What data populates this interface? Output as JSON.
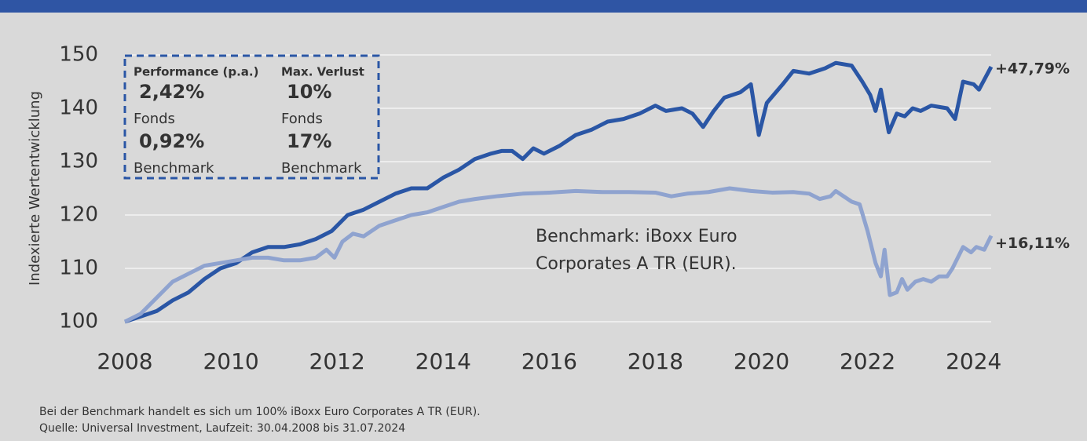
{
  "chart_data": {
    "type": "line",
    "y_label": "Indexierte Wertentwicklung",
    "xlim": [
      2008,
      2024.33
    ],
    "xticks": [
      2008,
      2010,
      2012,
      2014,
      2016,
      2018,
      2020,
      2022,
      2024
    ],
    "ylim": [
      100,
      150
    ],
    "yticks": [
      100,
      110,
      120,
      130,
      140,
      150
    ],
    "grid": true,
    "series": [
      {
        "name": "Fonds",
        "color": "#2a56a5",
        "end_label": "+47,79%",
        "x": [
          2008.0,
          2008.3,
          2008.6,
          2008.9,
          2009.2,
          2009.5,
          2009.8,
          2010.1,
          2010.4,
          2010.7,
          2011.0,
          2011.3,
          2011.6,
          2011.9,
          2012.2,
          2012.5,
          2012.8,
          2013.1,
          2013.4,
          2013.7,
          2014.0,
          2014.3,
          2014.6,
          2014.9,
          2015.1,
          2015.3,
          2015.5,
          2015.7,
          2015.9,
          2016.2,
          2016.5,
          2016.8,
          2017.1,
          2017.4,
          2017.7,
          2018.0,
          2018.2,
          2018.5,
          2018.7,
          2018.9,
          2019.1,
          2019.3,
          2019.6,
          2019.8,
          2019.95,
          2020.1,
          2020.4,
          2020.6,
          2020.9,
          2021.2,
          2021.4,
          2021.7,
          2021.9,
          2022.05,
          2022.15,
          2022.25,
          2022.4,
          2022.55,
          2022.7,
          2022.85,
          2023.0,
          2023.2,
          2023.5,
          2023.65,
          2023.8,
          2024.0,
          2024.1,
          2024.33
        ],
        "values": [
          100,
          101,
          102,
          104,
          105.5,
          108,
          110,
          111,
          113,
          114,
          114,
          114.5,
          115.5,
          117,
          120,
          121,
          122.5,
          124,
          125,
          125,
          127,
          128.5,
          130.5,
          131.5,
          132,
          132,
          130.5,
          132.5,
          131.5,
          133,
          135,
          136,
          137.5,
          138,
          139,
          140.5,
          139.5,
          140,
          139,
          136.5,
          139.5,
          142,
          143,
          144.5,
          135,
          141,
          144.5,
          147,
          146.5,
          147.5,
          148.5,
          148,
          145,
          142.5,
          139.5,
          143.5,
          135.5,
          139,
          138.5,
          140,
          139.5,
          140.5,
          140,
          138,
          145,
          144.5,
          143.5,
          147.79
        ]
      },
      {
        "name": "Benchmark",
        "color": "#8fa3cf",
        "end_label": "+16,11%",
        "x": [
          2008.0,
          2008.3,
          2008.6,
          2008.9,
          2009.2,
          2009.5,
          2009.8,
          2010.1,
          2010.4,
          2010.7,
          2011.0,
          2011.3,
          2011.6,
          2011.8,
          2011.95,
          2012.1,
          2012.3,
          2012.5,
          2012.8,
          2013.1,
          2013.4,
          2013.7,
          2014.0,
          2014.3,
          2014.6,
          2015.0,
          2015.5,
          2016.0,
          2016.5,
          2017.0,
          2017.5,
          2018.0,
          2018.3,
          2018.6,
          2019.0,
          2019.4,
          2019.8,
          2020.2,
          2020.6,
          2020.9,
          2021.1,
          2021.3,
          2021.4,
          2021.7,
          2021.85,
          2022.0,
          2022.15,
          2022.25,
          2022.32,
          2022.42,
          2022.55,
          2022.65,
          2022.75,
          2022.9,
          2023.05,
          2023.2,
          2023.35,
          2023.5,
          2023.6,
          2023.8,
          2023.95,
          2024.05,
          2024.2,
          2024.33
        ],
        "values": [
          100,
          101.5,
          104.5,
          107.5,
          109,
          110.5,
          111,
          111.5,
          112,
          112,
          111.5,
          111.5,
          112,
          113.5,
          112,
          115,
          116.5,
          116,
          118,
          119,
          120,
          120.5,
          121.5,
          122.5,
          123,
          123.5,
          124,
          124.2,
          124.5,
          124.3,
          124.3,
          124.2,
          123.5,
          124,
          124.3,
          125,
          124.5,
          124.2,
          124.3,
          124,
          123,
          123.5,
          124.5,
          122.5,
          122,
          117,
          111,
          108.5,
          113.5,
          105,
          105.5,
          108,
          106,
          107.5,
          108,
          107.5,
          108.5,
          108.5,
          110,
          114,
          113,
          114,
          113.5,
          116.11
        ]
      }
    ],
    "annotation": [
      "Benchmark: iBoxx Euro",
      "Corporates A TR (EUR)."
    ],
    "info_box": {
      "columns": [
        {
          "heading": "Performance (p.a.)",
          "items": [
            {
              "value": "2,42%",
              "label": "Fonds"
            },
            {
              "value": "0,92%",
              "label": "Benchmark"
            }
          ]
        },
        {
          "heading": "Max. Verlust",
          "items": [
            {
              "value": "10%",
              "label": "Fonds"
            },
            {
              "value": "17%",
              "label": "Benchmark"
            }
          ]
        }
      ]
    },
    "footnotes": [
      "Bei der Benchmark handelt es sich um 100% iBoxx Euro Corporates A TR (EUR).",
      "Quelle: Universal Investment, Laufzeit: 30.04.2008 bis 31.07.2024"
    ]
  }
}
